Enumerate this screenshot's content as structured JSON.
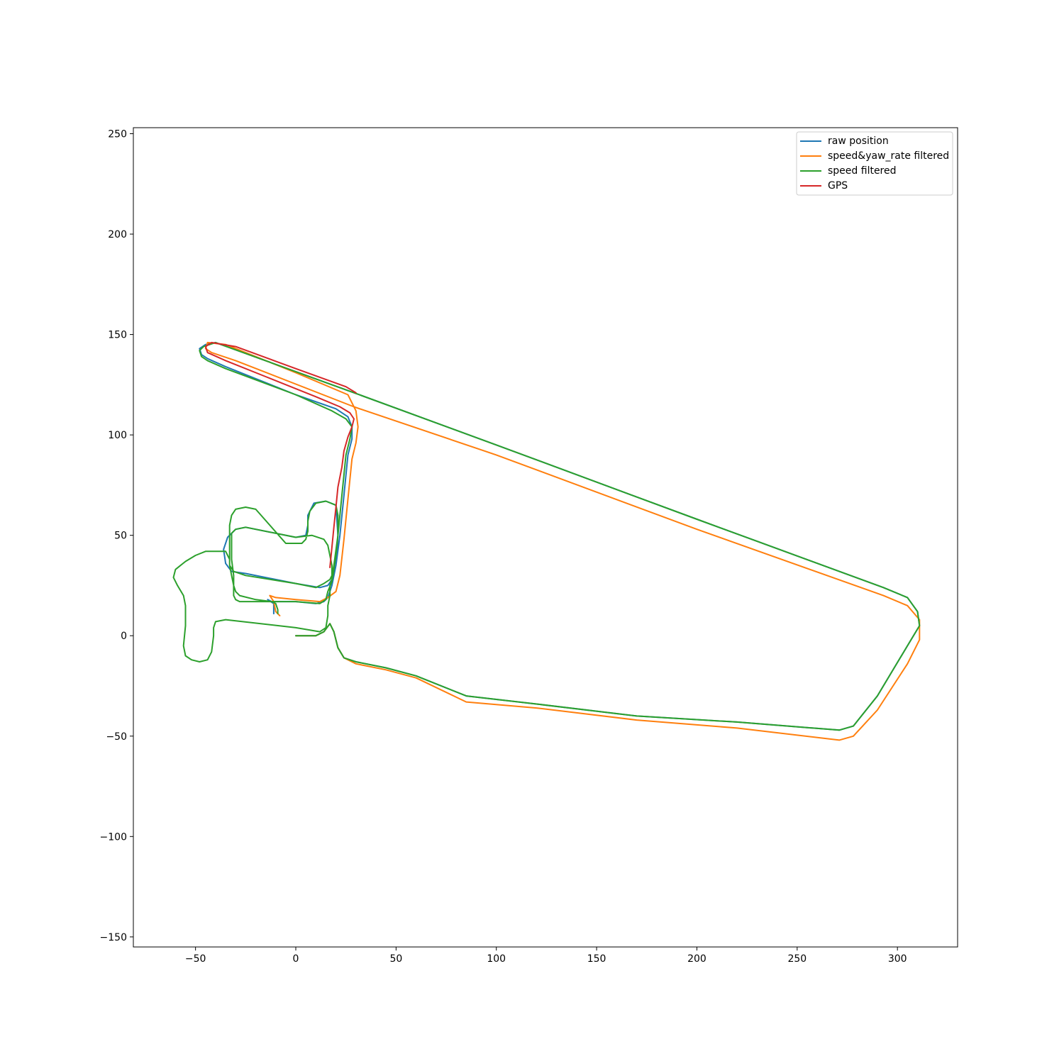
{
  "chart_data": {
    "type": "line",
    "title": "",
    "xlabel": "",
    "ylabel": "",
    "xlim": [
      -81,
      330
    ],
    "ylim": [
      -155,
      253
    ],
    "xticks": [
      -50,
      0,
      50,
      100,
      150,
      200,
      250,
      300
    ],
    "yticks": [
      -150,
      -100,
      -50,
      0,
      50,
      100,
      150,
      200,
      250
    ],
    "grid": false,
    "legend_position": "top-right",
    "colors": {
      "raw position": "#1f77b4",
      "speed&yaw_rate filtered": "#ff7f0e",
      "speed filtered": "#2ca02c",
      "GPS": "#d62728"
    },
    "series": [
      {
        "name": "raw position",
        "points": [
          [
            0,
            0
          ],
          [
            10,
            0
          ],
          [
            14,
            2
          ],
          [
            17,
            6
          ],
          [
            19,
            2
          ],
          [
            21,
            -6
          ],
          [
            24,
            -11
          ],
          [
            30,
            -13
          ],
          [
            45,
            -16
          ],
          [
            60,
            -20
          ],
          [
            85,
            -30
          ],
          [
            120,
            -34
          ],
          [
            170,
            -40
          ],
          [
            220,
            -43
          ],
          [
            271,
            -47
          ],
          [
            278,
            -45
          ],
          [
            290,
            -30
          ],
          [
            305,
            -5
          ],
          [
            311,
            5
          ],
          [
            310,
            12
          ],
          [
            305,
            19
          ],
          [
            293,
            24
          ],
          [
            200,
            58
          ],
          [
            100,
            95
          ],
          [
            29,
            121
          ],
          [
            -40,
            146
          ],
          [
            -45,
            145
          ],
          [
            -48,
            143
          ],
          [
            -47,
            140
          ],
          [
            -44,
            138
          ],
          [
            -35,
            134
          ],
          [
            0,
            120
          ],
          [
            20,
            113
          ],
          [
            26,
            109
          ],
          [
            28,
            104
          ],
          [
            28,
            98
          ],
          [
            26,
            90
          ],
          [
            24,
            70
          ],
          [
            22,
            50
          ],
          [
            20,
            35
          ],
          [
            18,
            28
          ],
          [
            16,
            25
          ],
          [
            12,
            24
          ],
          [
            0,
            26
          ],
          [
            -25,
            31
          ],
          [
            -32,
            32
          ],
          [
            -35,
            36
          ],
          [
            -36,
            43
          ],
          [
            -34,
            49
          ],
          [
            -30,
            53
          ],
          [
            -25,
            54
          ],
          [
            0,
            49
          ],
          [
            5,
            50
          ],
          [
            6,
            55
          ],
          [
            6,
            60
          ],
          [
            9,
            66
          ],
          [
            15,
            67
          ],
          [
            20,
            65
          ],
          [
            21,
            50
          ],
          [
            20,
            35
          ],
          [
            18,
            25
          ],
          [
            16,
            19
          ],
          [
            14,
            17
          ],
          [
            10,
            16
          ],
          [
            0,
            17
          ],
          [
            -12,
            17
          ],
          [
            -14,
            18
          ],
          [
            -11,
            16
          ],
          [
            -11,
            11
          ]
        ]
      },
      {
        "name": "speed&yaw_rate filtered",
        "points": [
          [
            0,
            0
          ],
          [
            10,
            0
          ],
          [
            14,
            2
          ],
          [
            17,
            6
          ],
          [
            19,
            2
          ],
          [
            21,
            -6
          ],
          [
            24,
            -11
          ],
          [
            30,
            -14
          ],
          [
            45,
            -17
          ],
          [
            60,
            -21
          ],
          [
            85,
            -33
          ],
          [
            120,
            -36
          ],
          [
            170,
            -42
          ],
          [
            220,
            -46
          ],
          [
            271,
            -52
          ],
          [
            278,
            -50
          ],
          [
            290,
            -37
          ],
          [
            305,
            -14
          ],
          [
            311,
            -2
          ],
          [
            311,
            8
          ],
          [
            305,
            15
          ],
          [
            293,
            20
          ],
          [
            200,
            53
          ],
          [
            100,
            90
          ],
          [
            29,
            114
          ],
          [
            -30,
            137
          ],
          [
            -42,
            141
          ],
          [
            -45,
            143
          ],
          [
            -44,
            146
          ],
          [
            -35,
            145
          ],
          [
            0,
            131
          ],
          [
            26,
            120
          ],
          [
            30,
            112
          ],
          [
            31,
            104
          ],
          [
            30,
            96
          ],
          [
            28,
            88
          ],
          [
            26,
            68
          ],
          [
            24,
            48
          ],
          [
            22,
            30
          ],
          [
            20,
            22
          ],
          [
            16,
            19
          ],
          [
            12,
            17
          ],
          [
            0,
            18
          ],
          [
            -10,
            19
          ],
          [
            -13,
            20
          ],
          [
            -11,
            17
          ],
          [
            -10,
            12
          ],
          [
            -8,
            10
          ]
        ]
      },
      {
        "name": "speed filtered",
        "points": [
          [
            0,
            0
          ],
          [
            10,
            0
          ],
          [
            14,
            2
          ],
          [
            17,
            6
          ],
          [
            19,
            2
          ],
          [
            21,
            -6
          ],
          [
            24,
            -11
          ],
          [
            30,
            -13
          ],
          [
            45,
            -16
          ],
          [
            60,
            -20
          ],
          [
            85,
            -30
          ],
          [
            120,
            -34
          ],
          [
            170,
            -40
          ],
          [
            220,
            -43
          ],
          [
            271,
            -47
          ],
          [
            278,
            -45
          ],
          [
            290,
            -30
          ],
          [
            305,
            -5
          ],
          [
            311,
            5
          ],
          [
            310,
            12
          ],
          [
            305,
            19
          ],
          [
            293,
            24
          ],
          [
            200,
            58
          ],
          [
            100,
            95
          ],
          [
            29,
            121
          ],
          [
            -40,
            146
          ],
          [
            -46,
            144
          ],
          [
            -48,
            142
          ],
          [
            -47,
            139
          ],
          [
            -44,
            137
          ],
          [
            -35,
            133
          ],
          [
            0,
            120
          ],
          [
            18,
            112
          ],
          [
            25,
            108
          ],
          [
            28,
            104
          ],
          [
            27,
            98
          ],
          [
            25,
            90
          ],
          [
            23,
            70
          ],
          [
            21,
            50
          ],
          [
            19,
            35
          ],
          [
            18,
            30
          ],
          [
            17,
            28
          ],
          [
            14,
            26
          ],
          [
            10,
            24
          ],
          [
            0,
            26
          ],
          [
            -25,
            30
          ],
          [
            -31,
            32
          ],
          [
            -33,
            35
          ],
          [
            -33,
            38
          ],
          [
            -35,
            42
          ],
          [
            -40,
            42
          ],
          [
            -45,
            42
          ],
          [
            -50,
            40
          ],
          [
            -55,
            37
          ],
          [
            -60,
            33
          ],
          [
            -61,
            29
          ],
          [
            -59,
            25
          ],
          [
            -56,
            20
          ],
          [
            -55,
            15
          ],
          [
            -55,
            5
          ],
          [
            -56,
            -5
          ],
          [
            -55,
            -10
          ],
          [
            -52,
            -12
          ],
          [
            -48,
            -13
          ],
          [
            -44,
            -12
          ],
          [
            -42,
            -8
          ],
          [
            -41,
            0
          ],
          [
            -41,
            4
          ],
          [
            -40,
            7
          ],
          [
            -35,
            8
          ],
          [
            0,
            4
          ],
          [
            12,
            2
          ],
          [
            15,
            4
          ],
          [
            16,
            10
          ],
          [
            16,
            15
          ],
          [
            17,
            20
          ],
          [
            17,
            25
          ],
          [
            18,
            28
          ],
          [
            18,
            35
          ],
          [
            17,
            40
          ],
          [
            16,
            45
          ],
          [
            14,
            48
          ],
          [
            8,
            50
          ],
          [
            0,
            49
          ],
          [
            -25,
            54
          ],
          [
            -30,
            53
          ],
          [
            -32,
            51
          ],
          [
            -32,
            45
          ],
          [
            -32,
            38
          ],
          [
            -31,
            30
          ],
          [
            -31,
            25
          ],
          [
            -31,
            20
          ],
          [
            -30,
            18
          ],
          [
            -28,
            17
          ],
          [
            0,
            17
          ],
          [
            12,
            16
          ],
          [
            15,
            18
          ],
          [
            16,
            22
          ],
          [
            18,
            27
          ],
          [
            19,
            33
          ],
          [
            20,
            40
          ],
          [
            21,
            50
          ],
          [
            21,
            60
          ],
          [
            20,
            65
          ],
          [
            15,
            67
          ],
          [
            10,
            66
          ],
          [
            7,
            62
          ],
          [
            6,
            57
          ],
          [
            6,
            52
          ],
          [
            5,
            48
          ],
          [
            3,
            46
          ],
          [
            -5,
            46
          ],
          [
            -20,
            63
          ],
          [
            -25,
            64
          ],
          [
            -30,
            63
          ],
          [
            -32,
            60
          ],
          [
            -33,
            55
          ],
          [
            -33,
            50
          ],
          [
            -33,
            45
          ],
          [
            -33,
            40
          ],
          [
            -33,
            35
          ],
          [
            -32,
            30
          ],
          [
            -31,
            25
          ],
          [
            -30,
            22
          ],
          [
            -28,
            20
          ],
          [
            -20,
            18
          ],
          [
            -12,
            17
          ],
          [
            -10,
            16
          ],
          [
            -9,
            13
          ],
          [
            -9,
            11
          ]
        ]
      },
      {
        "name": "GPS",
        "points": [
          [
            17,
            34
          ],
          [
            18,
            44
          ],
          [
            19,
            54
          ],
          [
            20,
            64
          ],
          [
            21,
            74
          ],
          [
            23,
            84
          ],
          [
            24,
            92
          ],
          [
            26,
            99
          ],
          [
            28,
            104
          ],
          [
            29,
            108
          ],
          [
            27,
            111
          ],
          [
            22,
            114
          ],
          [
            10,
            119
          ],
          [
            -15,
            129
          ],
          [
            -35,
            137
          ],
          [
            -44,
            141
          ],
          [
            -45,
            144
          ],
          [
            -42,
            146
          ],
          [
            -30,
            144
          ],
          [
            0,
            133
          ],
          [
            25,
            124
          ],
          [
            30,
            121
          ]
        ]
      }
    ]
  }
}
